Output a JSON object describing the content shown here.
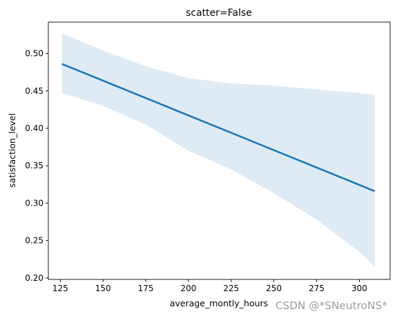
{
  "chart_data": {
    "type": "line",
    "title": "scatter=False",
    "xlabel": "average_montly_hours",
    "ylabel": "satisfaction_level",
    "xlim": [
      118,
      318
    ],
    "ylim": [
      0.198,
      0.542
    ],
    "x_ticks": [
      125,
      150,
      175,
      200,
      225,
      250,
      275,
      300
    ],
    "y_ticks": [
      0.2,
      0.25,
      0.3,
      0.35,
      0.4,
      0.45,
      0.5
    ],
    "x_tick_labels": [
      "125",
      "150",
      "175",
      "200",
      "225",
      "250",
      "275",
      "300"
    ],
    "y_tick_labels": [
      "0.20",
      "0.25",
      "0.30",
      "0.35",
      "0.40",
      "0.45",
      "0.50"
    ],
    "grid": false,
    "series": [
      {
        "type": "regression_line",
        "color": "#1f77b4",
        "x": [
          126,
          309
        ],
        "y": [
          0.486,
          0.316
        ]
      }
    ],
    "confidence_band": {
      "color": "#1f77b4",
      "x": [
        126,
        150,
        175,
        200,
        225,
        250,
        275,
        300,
        309
      ],
      "upper": [
        0.527,
        0.504,
        0.483,
        0.467,
        0.46,
        0.457,
        0.452,
        0.447,
        0.445
      ],
      "lower": [
        0.447,
        0.43,
        0.405,
        0.37,
        0.345,
        0.313,
        0.278,
        0.235,
        0.215
      ]
    }
  },
  "watermark": "CSDN @*SNeutroNS*"
}
